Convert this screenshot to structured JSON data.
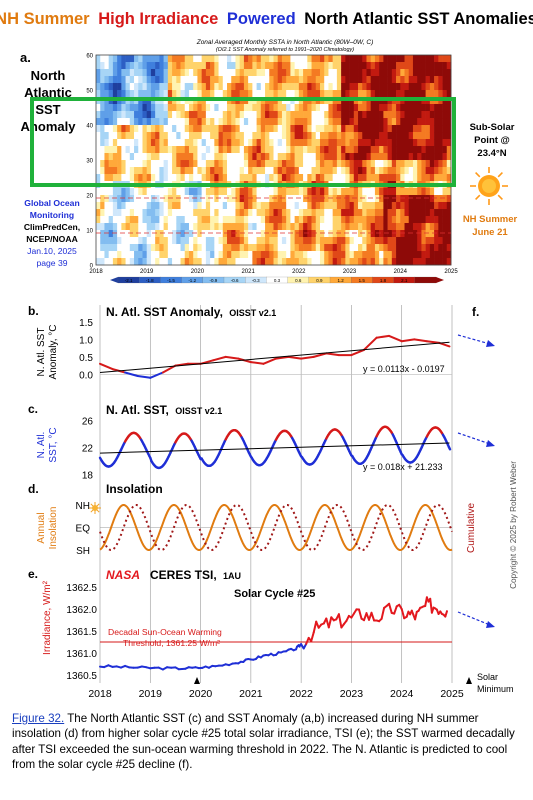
{
  "title": {
    "part1": "NH Summer",
    "part2": "High Irradiance",
    "part3": "Powered",
    "part4": "North Atlantic SST Anomalies",
    "colors": {
      "part1": "#e07b10",
      "part2": "#d61a1a",
      "part3": "#1f2fd6",
      "part4": "#000000"
    }
  },
  "panel_a": {
    "letter": "a.",
    "label_lines": [
      "North",
      "Atlantic",
      "SST",
      "Anomaly"
    ],
    "heatmap_title": "Zonal Averaged Monthly SSTA in North Atlantic (80W–0W, C)",
    "heatmap_subtitle": "(OI2.1 SST Anomaly referred to 1991–2020 Climatology)",
    "y_ticks": [
      "60",
      "50",
      "40",
      "30",
      "20",
      "10",
      "0"
    ],
    "x_ticks": [
      "2018",
      "2019",
      "2020",
      "2021",
      "2022",
      "2023",
      "2024",
      "2025"
    ],
    "colorbar_ticks": [
      "-2.1",
      "-1.8",
      "-1.5",
      "-1.2",
      "-0.9",
      "-0.6",
      "-0.3",
      "0.3",
      "0.6",
      "0.9",
      "1.2",
      "1.5",
      "1.8",
      "2.1"
    ],
    "colorbar_colors": [
      "#1f3f9e",
      "#2d5fc4",
      "#3f7fdd",
      "#5f9fe8",
      "#83bdf0",
      "#a7d5f6",
      "#cfe7fb",
      "#ffffff",
      "#fff3b0",
      "#ffd36b",
      "#ffa93a",
      "#f47a22",
      "#e04818",
      "#c21a10",
      "#8e0a08"
    ],
    "sub_solar_lines": [
      "Sub-Solar",
      "Point @",
      "23.4°N"
    ],
    "nh_summer_lines": [
      "NH Summer",
      "June 21"
    ],
    "source_lines": [
      "Global Ocean",
      "Monitoring",
      "ClimPredCen,",
      "NCEP/NOAA",
      "Jan.10, 2025",
      "page 39"
    ]
  },
  "panel_b": {
    "letter": "b.",
    "title": "N. Atl. SST Anomaly,",
    "title_small": "OISST v2.1",
    "ylabel_lines": [
      "N. Atl. SST",
      "Anomaly, °C"
    ],
    "y_ticks": [
      "1.5",
      "1.0",
      "0.5",
      "0.0"
    ],
    "equation": "y = 0.0113x - 0.0197",
    "letter_f": "f."
  },
  "panel_c": {
    "letter": "c.",
    "title": "N. Atl. SST,",
    "title_small": "OISST v2.1",
    "ylabel_lines": [
      "N. Atl.",
      "SST, °C"
    ],
    "y_ticks": [
      "26",
      "22",
      "18"
    ],
    "equation": "y = 0.018x + 21.233"
  },
  "panel_d": {
    "letter": "d.",
    "title": "Insolation",
    "ylabel_lines": [
      "Annual",
      "Insolation"
    ],
    "y_ticks": [
      "NH",
      "EQ",
      "SH"
    ],
    "right_label": "Cumulative"
  },
  "panel_e": {
    "letter": "e.",
    "nasa": "NASA",
    "title": "CERES TSI,",
    "title_small": "1AU",
    "ylabel": "Irradiance, W/m²",
    "y_ticks": [
      "1362.5",
      "1362.0",
      "1361.5",
      "1361.0",
      "1360.5"
    ],
    "solar_cycle": "Solar Cycle #25",
    "threshold_line1": "Decadal  Sun-Ocean Warming",
    "threshold_line2": "Threshold, 1361.25 W/m²",
    "x_ticks": [
      "2018",
      "2019",
      "2020",
      "2021",
      "2022",
      "2023",
      "2024",
      "2025"
    ],
    "solar_min_lines": [
      "Solar",
      "Minimum"
    ]
  },
  "copyright": "Copyright © 2025 by Robert Weber",
  "caption": {
    "fig_label": "Figure 32.",
    "text": " The North Atlantic SST (c) and SST Anomaly (a,b) increased during NH summer insolation (d) from higher solar cycle #25 total solar irradiance, TSI (e); the SST warmed decadally after TSI exceeded the sun-ocean warming threshold in 2022.  The N. Atlantic is predicted to cool from the solar cycle #25 decline (f)."
  },
  "chart_data": [
    {
      "type": "heatmap",
      "title": "Zonal Averaged Monthly SSTA in North Atlantic (80W–0W, C)",
      "x_range": [
        2018,
        2025
      ],
      "y_range": [
        0,
        60
      ],
      "x_ticks": [
        2018,
        2019,
        2020,
        2021,
        2022,
        2023,
        2024,
        2025
      ],
      "y_ticks": [
        0,
        10,
        20,
        30,
        40,
        50,
        60
      ],
      "color_scale": [
        -2.1,
        2.1
      ],
      "annotated_band_latitude": [
        23.4,
        48
      ]
    },
    {
      "type": "line",
      "title": "N. Atl. SST Anomaly, OISST v2.1",
      "x_range": [
        2018,
        2025
      ],
      "ylim": [
        -0.25,
        1.5
      ],
      "series": [
        {
          "x": [
            2018.0,
            2018.25,
            2018.5,
            2018.75,
            2019.0,
            2019.25,
            2019.5,
            2019.75,
            2020.0,
            2020.25,
            2020.5,
            2020.75,
            2021.0,
            2021.25,
            2021.5,
            2021.75,
            2022.0,
            2022.25,
            2022.5,
            2022.75,
            2023.0,
            2023.25,
            2023.5,
            2023.75,
            2024.0,
            2024.25,
            2024.5,
            2024.75,
            2024.95
          ],
          "y": [
            0.3,
            0.15,
            0.05,
            -0.05,
            -0.1,
            0.05,
            0.25,
            0.3,
            0.3,
            0.4,
            0.5,
            0.45,
            0.35,
            0.3,
            0.45,
            0.5,
            0.45,
            0.5,
            0.6,
            0.55,
            0.55,
            0.7,
            1.05,
            1.1,
            0.95,
            1.0,
            0.95,
            0.9,
            0.8
          ]
        },
        {
          "name": "y = 0.0113x - 0.0197",
          "x": [
            2018.0,
            2024.95
          ],
          "y": [
            0.05,
            0.92
          ]
        }
      ]
    },
    {
      "type": "line",
      "title": "N. Atl. SST, OISST v2.1",
      "x_range": [
        2018,
        2025
      ],
      "ylim": [
        17.5,
        27
      ],
      "series": [
        {
          "description_of_shape": "seasonal cycle",
          "min_values": [
            19.2,
            19.0,
            19.3,
            19.4,
            19.5,
            19.6,
            19.8
          ],
          "max_values": [
            24.2,
            24.1,
            24.6,
            24.5,
            24.7,
            25.1,
            25.0
          ]
        },
        {
          "name": "y = 0.018x + 21.233",
          "x": [
            2018.0,
            2024.95
          ],
          "y": [
            21.2,
            22.7
          ]
        }
      ]
    },
    {
      "type": "line",
      "title": "Insolation",
      "x_range": [
        2018,
        2025
      ],
      "y_categories": [
        "SH",
        "EQ",
        "NH"
      ],
      "series": [
        {
          "name": "Annual Insolation",
          "period_years": 1,
          "peak_month": "June"
        },
        {
          "name": "Cumulative",
          "period_years": 1,
          "lag_months": 3
        }
      ]
    },
    {
      "type": "line",
      "title": "CERES TSI, 1AU",
      "x_range": [
        2018,
        2025
      ],
      "ylim": [
        1360.5,
        1362.7
      ],
      "threshold": 1361.25,
      "series": [
        {
          "name": "TSI",
          "x": [
            2018.0,
            2018.5,
            2019.0,
            2019.5,
            2019.9,
            2020.3,
            2020.7,
            2021.0,
            2021.3,
            2021.6,
            2021.9,
            2022.0,
            2022.3,
            2022.6,
            2022.9,
            2023.2,
            2023.5,
            2023.8,
            2024.1,
            2024.3,
            2024.5,
            2024.7,
            2024.9
          ],
          "y": [
            1360.7,
            1360.68,
            1360.66,
            1360.65,
            1360.66,
            1360.7,
            1360.78,
            1360.85,
            1360.95,
            1361.0,
            1361.1,
            1361.2,
            1361.55,
            1361.7,
            1361.75,
            1361.9,
            1361.8,
            1362.0,
            1361.9,
            1361.85,
            1362.1,
            1362.05,
            1361.95
          ]
        }
      ]
    }
  ]
}
